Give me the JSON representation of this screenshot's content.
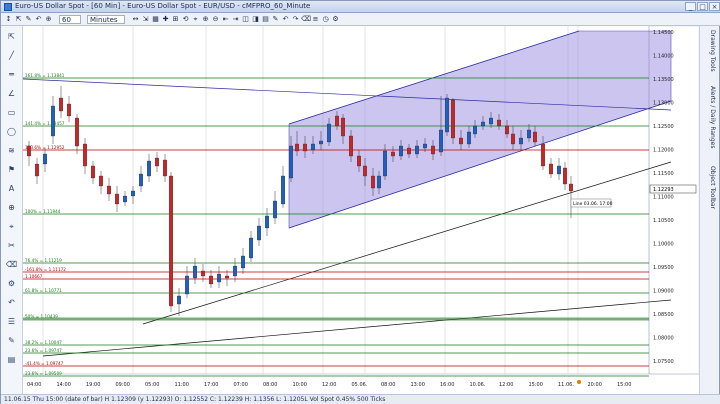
{
  "window": {
    "title": "Euro-US Dollar Spot - [60 Min] - Euro-US Dollar Spot - EUR/USD - cMFPRO_60_Minute",
    "buttons": [
      "_",
      "□",
      "×"
    ]
  },
  "toolbar": {
    "interval": "60",
    "unit": "Minutes",
    "left_icons": [
      "↕",
      "⇱",
      "✎",
      "↶",
      "⊕"
    ],
    "icons": [
      "↔",
      "⇲",
      "▦",
      "✚",
      "⊞",
      "⟲",
      "⌖",
      "⊕",
      "⊖",
      "⇤",
      "⇥",
      "◫",
      "◨",
      "▤",
      "✎",
      "↶",
      "↷",
      "⌫",
      "≡",
      "◷",
      "⚙"
    ]
  },
  "left_tools": [
    "⇱",
    "╱",
    "═",
    "∠",
    "▭",
    "◯",
    "≋",
    "⚑",
    "A",
    "⊕",
    "⌖",
    "✂",
    "⌫",
    "⚙",
    "↶",
    "☰",
    "✎",
    "▤"
  ],
  "right_panel": [
    "Drawing Tools",
    "Alerts / Daily Ranges",
    "Object Toolbar"
  ],
  "status": "11.06.15 Thu 15:00 (date of bar) H 1.12309 (y 1.12293)    O: 1.12552 C: 1.12239 H: 1.1356 L: 1.1205L    Vol Spot 0.45% 500 Ticks",
  "chart_data": {
    "type": "candlestick",
    "symbol": "EUR/USD",
    "timeframe": "60 Minute",
    "y_axis": [
      "1.14500",
      "1.14000",
      "1.13500",
      "1.13000",
      "1.12500",
      "1.12000",
      "1.11500",
      "1.11000",
      "1.10500",
      "1.10000",
      "1.09500",
      "1.09000",
      "1.08500",
      "1.08000",
      "1.07500"
    ],
    "current_price": "1.12293",
    "x_axis": [
      "04:00",
      "14:00",
      "19:00",
      "09:00",
      "05:00",
      "11:00",
      "17:00",
      "07:00",
      "08:00",
      "10:00",
      "12:00",
      "05.06.",
      "08:00",
      "13:00",
      "16:00",
      "10.06.",
      "12:00",
      "15:00",
      "11.06.",
      "20:00",
      "15:00"
    ],
    "fib_levels": [
      {
        "label": "161.8% = 1.13841",
        "color": "#1a7a1a"
      },
      {
        "label": "141.4% = 1.13457",
        "color": "#1a7a1a"
      },
      {
        "label": "123.6% = 1.12952",
        "color": "#b00000"
      },
      {
        "label": "100% = 1.11944",
        "color": "#1a7a1a"
      },
      {
        "label": "76.4% = 1.11219",
        "color": "#1a7a1a"
      },
      {
        "label": "-161.8% = 1.11172",
        "color": "#b00000"
      },
      {
        "label": "1.10667",
        "color": "#b00000"
      },
      {
        "label": "61.8% = 1.10771",
        "color": "#1a7a1a"
      },
      {
        "label": "50% = 1.10439",
        "color": "#1a7a1a"
      },
      {
        "label": "38.2% = 1.10047",
        "color": "#1a7a1a"
      },
      {
        "label": "23.6% = 1.09747",
        "color": "#1a7a1a"
      },
      {
        "label": "-41.4% = 1.09747",
        "color": "#b00000"
      },
      {
        "label": "23.6% = 1.09509",
        "color": "#1a7a1a"
      }
    ],
    "annotation": "Line 03.06. 17:00",
    "colors": {
      "up": "#1f5fbf",
      "down": "#c62828",
      "channel": "#8b7fdc"
    }
  }
}
